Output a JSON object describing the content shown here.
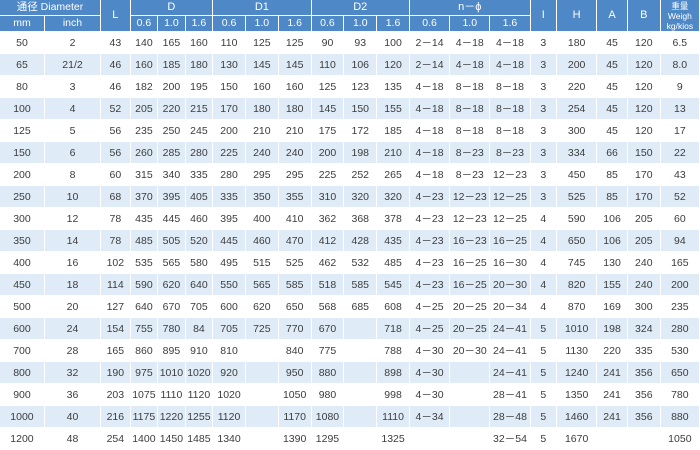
{
  "table": {
    "headers": {
      "diameter": "通径 Diameter",
      "mm": "mm",
      "inch": "inch",
      "L": "L",
      "D": "D",
      "D1": "D1",
      "D2": "D2",
      "n_phi": "n－ϕ",
      "I": "I",
      "H": "H",
      "A": "A",
      "B": "B",
      "weight_line1": "重量",
      "weight_line2": "Weigh",
      "weight_line3": "kg/kios",
      "pressures": [
        "0.6",
        "1.0",
        "1.6"
      ]
    },
    "rows": [
      [
        "50",
        "2",
        "43",
        "140",
        "165",
        "160",
        "110",
        "125",
        "125",
        "90",
        "93",
        "100",
        "2－14",
        "4－18",
        "4－18",
        "3",
        "180",
        "45",
        "120",
        "6.5"
      ],
      [
        "65",
        "21/2",
        "46",
        "160",
        "185",
        "180",
        "130",
        "145",
        "145",
        "110",
        "106",
        "120",
        "2－14",
        "4－18",
        "4－18",
        "3",
        "200",
        "45",
        "120",
        "8.0"
      ],
      [
        "80",
        "3",
        "46",
        "182",
        "200",
        "195",
        "150",
        "160",
        "160",
        "125",
        "123",
        "135",
        "4－18",
        "8－18",
        "8－18",
        "3",
        "220",
        "45",
        "120",
        "9"
      ],
      [
        "100",
        "4",
        "52",
        "205",
        "220",
        "215",
        "170",
        "180",
        "180",
        "145",
        "150",
        "155",
        "4－18",
        "8－18",
        "8－18",
        "3",
        "254",
        "45",
        "120",
        "13"
      ],
      [
        "125",
        "5",
        "56",
        "235",
        "250",
        "245",
        "200",
        "210",
        "210",
        "175",
        "172",
        "185",
        "4－18",
        "8－18",
        "8－18",
        "3",
        "300",
        "45",
        "120",
        "17"
      ],
      [
        "150",
        "6",
        "56",
        "260",
        "285",
        "280",
        "225",
        "240",
        "240",
        "200",
        "198",
        "210",
        "4－18",
        "8－23",
        "8－23",
        "3",
        "334",
        "66",
        "150",
        "22"
      ],
      [
        "200",
        "8",
        "60",
        "315",
        "340",
        "335",
        "280",
        "295",
        "295",
        "225",
        "252",
        "265",
        "4－18",
        "8－23",
        "12－23",
        "3",
        "450",
        "85",
        "170",
        "43"
      ],
      [
        "250",
        "10",
        "68",
        "370",
        "395",
        "405",
        "335",
        "350",
        "355",
        "310",
        "320",
        "320",
        "4－23",
        "12－23",
        "12－25",
        "3",
        "525",
        "85",
        "170",
        "52"
      ],
      [
        "300",
        "12",
        "78",
        "435",
        "445",
        "460",
        "395",
        "400",
        "410",
        "362",
        "368",
        "378",
        "4－23",
        "12－23",
        "12－25",
        "4",
        "590",
        "106",
        "205",
        "60"
      ],
      [
        "350",
        "14",
        "78",
        "485",
        "505",
        "520",
        "445",
        "460",
        "470",
        "412",
        "428",
        "435",
        "4－23",
        "16－23",
        "16－25",
        "4",
        "650",
        "106",
        "205",
        "94"
      ],
      [
        "400",
        "16",
        "102",
        "535",
        "565",
        "580",
        "495",
        "515",
        "525",
        "462",
        "532",
        "485",
        "4－23",
        "16－25",
        "16－30",
        "4",
        "745",
        "130",
        "240",
        "165"
      ],
      [
        "450",
        "18",
        "114",
        "590",
        "620",
        "640",
        "550",
        "565",
        "585",
        "518",
        "585",
        "545",
        "4－23",
        "16－25",
        "20－30",
        "4",
        "820",
        "155",
        "240",
        "200"
      ],
      [
        "500",
        "20",
        "127",
        "640",
        "670",
        "705",
        "600",
        "620",
        "650",
        "568",
        "685",
        "608",
        "4－25",
        "20－25",
        "20－34",
        "4",
        "870",
        "169",
        "300",
        "235"
      ],
      [
        "600",
        "24",
        "154",
        "755",
        "780",
        "84",
        "705",
        "725",
        "770",
        "670",
        "",
        "718",
        "4－25",
        "20－25",
        "24－41",
        "5",
        "1010",
        "198",
        "324",
        "280"
      ],
      [
        "700",
        "28",
        "165",
        "860",
        "895",
        "910",
        "810",
        "",
        "840",
        "775",
        "",
        "788",
        "4－30",
        "20－30",
        "24－41",
        "5",
        "1130",
        "220",
        "335",
        "530"
      ],
      [
        "800",
        "32",
        "190",
        "975",
        "1010",
        "1020",
        "920",
        "",
        "950",
        "880",
        "",
        "898",
        "4－30",
        "",
        "24－41",
        "5",
        "1240",
        "241",
        "356",
        "650"
      ],
      [
        "900",
        "36",
        "203",
        "1075",
        "1110",
        "1120",
        "1020",
        "",
        "1050",
        "980",
        "",
        "998",
        "4－30",
        "",
        "28－41",
        "5",
        "1350",
        "241",
        "356",
        "780"
      ],
      [
        "1000",
        "40",
        "216",
        "1175",
        "1220",
        "1255",
        "1120",
        "",
        "1170",
        "1080",
        "",
        "1110",
        "4－34",
        "",
        "28－48",
        "5",
        "1460",
        "241",
        "356",
        "880"
      ],
      [
        "1200",
        "48",
        "254",
        "1400",
        "1450",
        "1485",
        "1340",
        "",
        "1390",
        "1295",
        "",
        "1325",
        "",
        "",
        "32－54",
        "5",
        "1670",
        "",
        "",
        "1050"
      ]
    ]
  }
}
